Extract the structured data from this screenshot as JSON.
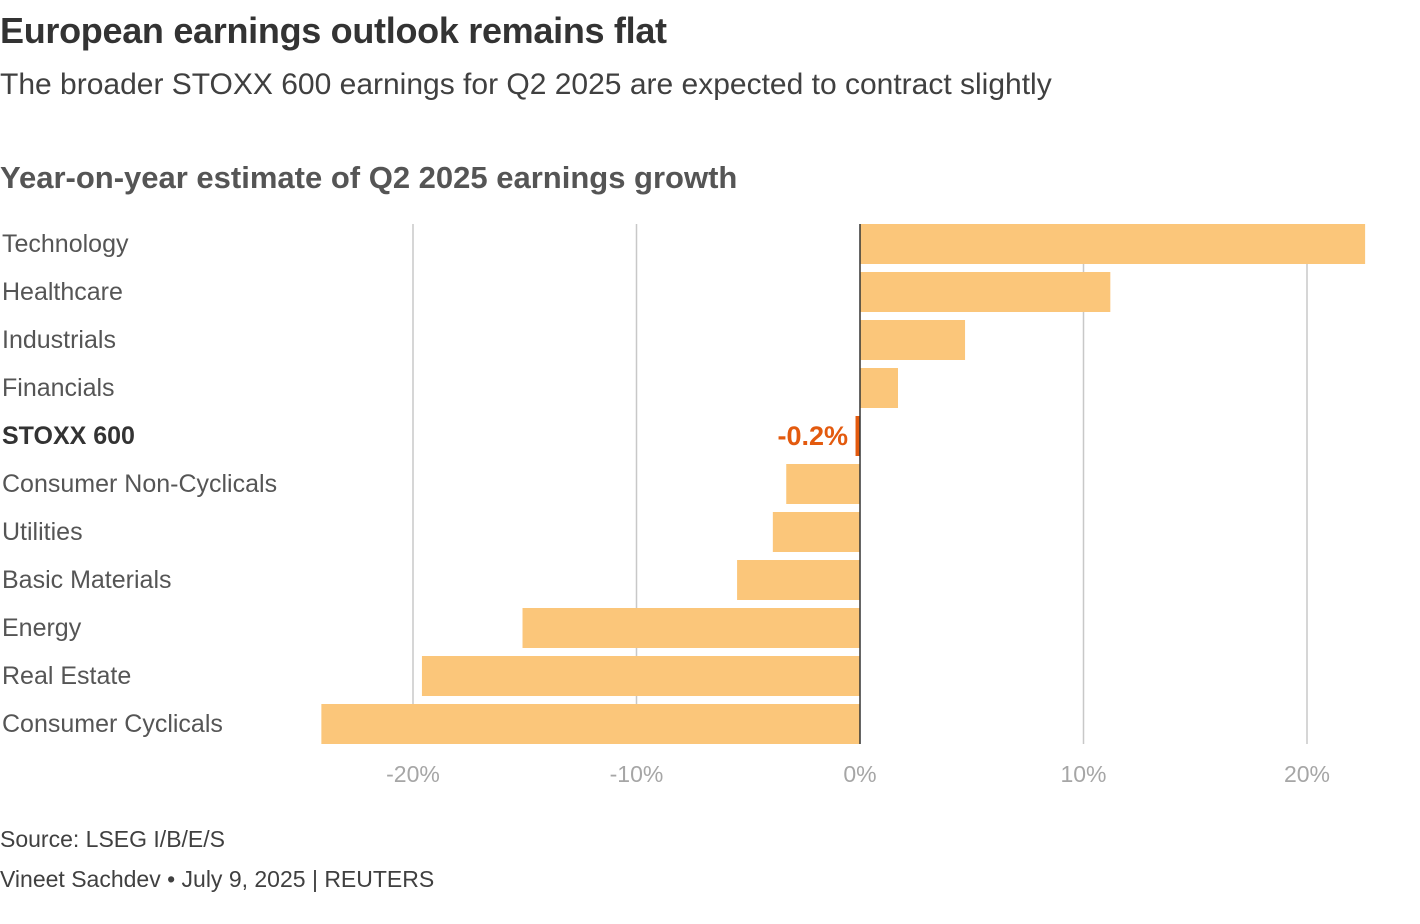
{
  "header": {
    "title": "European earnings outlook remains flat",
    "subtitle": "The broader STOXX 600 earnings for Q2 2025 are expected to contract slightly"
  },
  "chart_data": {
    "type": "bar",
    "orientation": "horizontal",
    "title": "Year-on-year estimate of Q2 2025 earnings growth",
    "categories": [
      "Technology",
      "Healthcare",
      "Industrials",
      "Financials",
      "STOXX 600",
      "Consumer Non-Cyclicals",
      "Utilities",
      "Basic Materials",
      "Energy",
      "Real Estate",
      "Consumer Cyclicals"
    ],
    "values": [
      22.6,
      11.2,
      4.7,
      1.7,
      -0.2,
      -3.3,
      -3.9,
      -5.5,
      -15.1,
      -19.6,
      -24.1
    ],
    "highlight": {
      "category": "STOXX 600",
      "label": "-0.2%",
      "color": "#e35a0e"
    },
    "xlim": [
      -26,
      24
    ],
    "xticks": [
      -20,
      -10,
      0,
      10,
      20
    ],
    "xtick_labels": [
      "-20%",
      "-10%",
      "0%",
      "10%",
      "20%"
    ],
    "bar_color": "#fbc67a",
    "grid": true,
    "xlabel": "",
    "ylabel": ""
  },
  "footer": {
    "source": "Source: LSEG I/B/E/S",
    "credit": "Vineet Sachdev • July 9, 2025 | REUTERS"
  }
}
